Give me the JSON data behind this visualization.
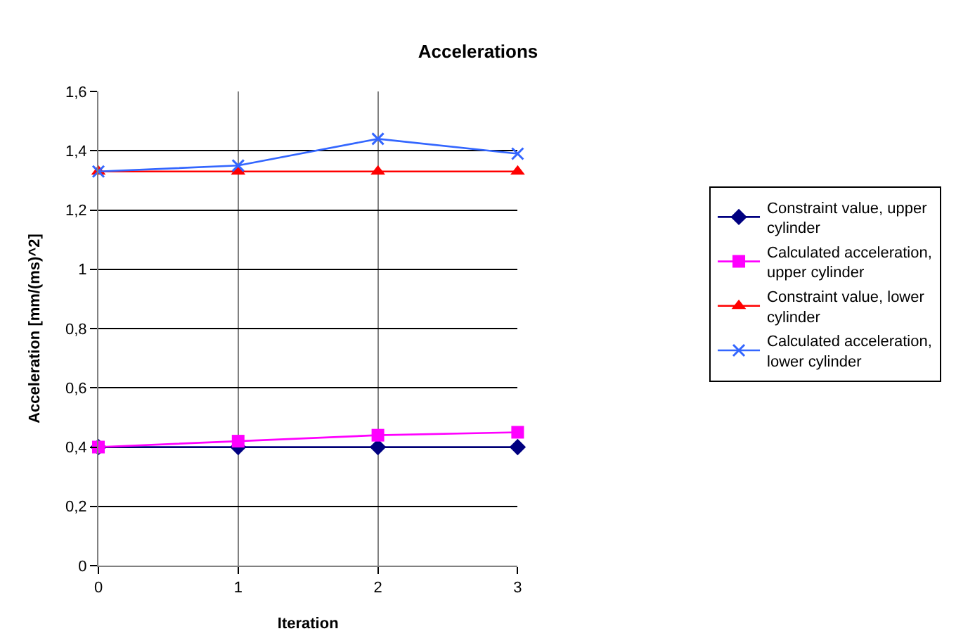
{
  "chart_data": {
    "type": "line",
    "title": "Accelerations",
    "xlabel": "Iteration",
    "ylabel": "Acceleration [mm/(ms)^2]",
    "x": [
      0,
      1,
      2,
      3
    ],
    "series": [
      {
        "name": "Constraint value, upper cylinder",
        "color": "#000080",
        "marker": "diamond",
        "values": [
          0.4,
          0.4,
          0.4,
          0.4
        ]
      },
      {
        "name": "Calculated acceleration, upper cylinder",
        "color": "#ff00ff",
        "marker": "square",
        "values": [
          0.4,
          0.42,
          0.44,
          0.45
        ]
      },
      {
        "name": "Constraint value, lower cylinder",
        "color": "#ff0000",
        "marker": "triangle",
        "values": [
          1.33,
          1.33,
          1.33,
          1.33
        ]
      },
      {
        "name": "Calculated acceleration, lower cylinder",
        "color": "#3366ff",
        "marker": "cross",
        "values": [
          1.33,
          1.35,
          1.44,
          1.39
        ]
      }
    ],
    "xlim": [
      0,
      3
    ],
    "xticks": [
      0,
      1,
      2,
      3
    ],
    "ylim": [
      0,
      1.6
    ],
    "yticks": [
      0,
      {
        "value": 0.2,
        "label": "0,2"
      },
      {
        "value": 0.4,
        "label": "0,4"
      },
      {
        "value": 0.6,
        "label": "0,6"
      },
      {
        "value": 0.8,
        "label": "0,8"
      },
      1,
      {
        "value": 1.2,
        "label": "1,2"
      },
      {
        "value": 1.4,
        "label": "1,4"
      },
      {
        "value": 1.6,
        "label": "1,6"
      }
    ],
    "grid": true,
    "legend": "right",
    "line_style": "solid"
  }
}
